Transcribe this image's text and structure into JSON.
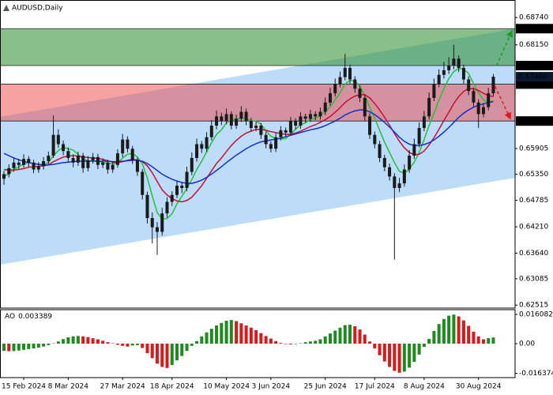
{
  "chart_data": [
    {
      "type": "candlestick",
      "title": "AUDUSD,Daily",
      "xlim": [
        -0.8,
        103.4
      ],
      "ylim": [
        0.6245,
        0.6912
      ],
      "xticks": [
        {
          "value": 4,
          "label": "15 Feb 2024"
        },
        {
          "value": 13,
          "label": "8 Mar 2024"
        },
        {
          "value": 24,
          "label": "27 Mar 2024"
        },
        {
          "value": 34,
          "label": "18 Apr 2024"
        },
        {
          "value": 45,
          "label": "10 May 2024"
        },
        {
          "value": 54,
          "label": "3 Jun 2024"
        },
        {
          "value": 65,
          "label": "25 Jun 2024"
        },
        {
          "value": 75,
          "label": "17 Jul 2024"
        },
        {
          "value": 85,
          "label": "8 Aug 2024"
        },
        {
          "value": 96,
          "label": "30 Aug 2024"
        }
      ],
      "yticks": [
        {
          "value": 0.6874,
          "label": "0.68740"
        },
        {
          "value": 0.6815,
          "label": "0.68150"
        },
        {
          "value": 0.65905,
          "label": "0.65905"
        },
        {
          "value": 0.6535,
          "label": "0.65350"
        },
        {
          "value": 0.64785,
          "label": "0.64785"
        },
        {
          "value": 0.6421,
          "label": "0.64210"
        },
        {
          "value": 0.6364,
          "label": "0.63640"
        },
        {
          "value": 0.63085,
          "label": "0.63085"
        },
        {
          "value": 0.62515,
          "label": "0.62515"
        }
      ],
      "grid": false,
      "levels": [
        {
          "value": 0.685,
          "label": "0.68500"
        },
        {
          "value": 0.677,
          "label": "0.67700"
        },
        {
          "value": 0.673,
          "label": "0.67300"
        },
        {
          "value": 0.665,
          "label": "0.66500"
        }
      ],
      "current_price": {
        "value": 0.6746,
        "label": "0.67460"
      },
      "zones": [
        {
          "range": [
            0.677,
            0.685
          ],
          "color": "rgba(40,140,40,0.55)"
        },
        {
          "range": [
            0.665,
            0.673
          ],
          "color": "rgba(240,70,70,0.5)"
        }
      ],
      "channel": {
        "upper": [
          0.6659,
          0.685
        ],
        "lower": [
          0.6339,
          0.6527
        ],
        "color": "#bcdcfa"
      },
      "candle_color": "#1a1a1a",
      "candles": [
        [
          0.6525,
          0.6542,
          0.6512,
          0.6535
        ],
        [
          0.6535,
          0.6556,
          0.6528,
          0.6548
        ],
        [
          0.6548,
          0.6571,
          0.654,
          0.656
        ],
        [
          0.656,
          0.6568,
          0.6546,
          0.6555
        ],
        [
          0.6555,
          0.6578,
          0.6549,
          0.6568
        ],
        [
          0.6568,
          0.6574,
          0.6551,
          0.656
        ],
        [
          0.656,
          0.6566,
          0.6537,
          0.6545
        ],
        [
          0.6545,
          0.6561,
          0.6538,
          0.6552
        ],
        [
          0.6552,
          0.6572,
          0.6545,
          0.6563
        ],
        [
          0.6563,
          0.6584,
          0.6556,
          0.6575
        ],
        [
          0.6575,
          0.6662,
          0.657,
          0.662
        ],
        [
          0.662,
          0.6632,
          0.6592,
          0.66
        ],
        [
          0.66,
          0.6608,
          0.6576,
          0.6585
        ],
        [
          0.6585,
          0.6593,
          0.6562,
          0.657
        ],
        [
          0.657,
          0.6578,
          0.655,
          0.656
        ],
        [
          0.656,
          0.6584,
          0.6553,
          0.6575
        ],
        [
          0.6575,
          0.6581,
          0.6538,
          0.6548
        ],
        [
          0.6548,
          0.6574,
          0.6541,
          0.6565
        ],
        [
          0.6565,
          0.6581,
          0.6558,
          0.6572
        ],
        [
          0.6572,
          0.6579,
          0.6546,
          0.6555
        ],
        [
          0.6555,
          0.6569,
          0.6548,
          0.656
        ],
        [
          0.656,
          0.6566,
          0.6536,
          0.6545
        ],
        [
          0.6545,
          0.6563,
          0.6538,
          0.6555
        ],
        [
          0.6555,
          0.6589,
          0.6549,
          0.658
        ],
        [
          0.658,
          0.6622,
          0.6572,
          0.661
        ],
        [
          0.661,
          0.6617,
          0.6582,
          0.659
        ],
        [
          0.659,
          0.6596,
          0.6557,
          0.6565
        ],
        [
          0.6565,
          0.6571,
          0.6531,
          0.654
        ],
        [
          0.654,
          0.6546,
          0.648,
          0.649
        ],
        [
          0.649,
          0.6497,
          0.6428,
          0.644
        ],
        [
          0.644,
          0.6452,
          0.6385,
          0.642
        ],
        [
          0.642,
          0.6431,
          0.636,
          0.641
        ],
        [
          0.641,
          0.6462,
          0.6402,
          0.645
        ],
        [
          0.645,
          0.6485,
          0.6441,
          0.6475
        ],
        [
          0.6475,
          0.6498,
          0.6466,
          0.649
        ],
        [
          0.649,
          0.6521,
          0.6483,
          0.651
        ],
        [
          0.651,
          0.6518,
          0.6494,
          0.6505
        ],
        [
          0.6505,
          0.6551,
          0.6498,
          0.654
        ],
        [
          0.654,
          0.6582,
          0.6533,
          0.657
        ],
        [
          0.657,
          0.6612,
          0.6562,
          0.66
        ],
        [
          0.66,
          0.6607,
          0.6581,
          0.659
        ],
        [
          0.659,
          0.6626,
          0.6583,
          0.6615
        ],
        [
          0.6615,
          0.6652,
          0.6608,
          0.664
        ],
        [
          0.664,
          0.6673,
          0.6632,
          0.666
        ],
        [
          0.666,
          0.6668,
          0.6641,
          0.665
        ],
        [
          0.665,
          0.6677,
          0.6643,
          0.6665
        ],
        [
          0.6665,
          0.6671,
          0.6632,
          0.664
        ],
        [
          0.664,
          0.6664,
          0.6633,
          0.6655
        ],
        [
          0.6655,
          0.6682,
          0.6648,
          0.667
        ],
        [
          0.667,
          0.6677,
          0.6641,
          0.665
        ],
        [
          0.665,
          0.6657,
          0.6627,
          0.6635
        ],
        [
          0.6635,
          0.6649,
          0.6628,
          0.664
        ],
        [
          0.664,
          0.6646,
          0.6611,
          0.662
        ],
        [
          0.662,
          0.6627,
          0.6591,
          0.66
        ],
        [
          0.66,
          0.6606,
          0.6582,
          0.659
        ],
        [
          0.659,
          0.6624,
          0.6583,
          0.6615
        ],
        [
          0.6615,
          0.6639,
          0.6608,
          0.663
        ],
        [
          0.663,
          0.6636,
          0.6617,
          0.6625
        ],
        [
          0.6625,
          0.6659,
          0.6618,
          0.665
        ],
        [
          0.665,
          0.6656,
          0.6632,
          0.664
        ],
        [
          0.664,
          0.6669,
          0.6633,
          0.666
        ],
        [
          0.666,
          0.6666,
          0.6647,
          0.6655
        ],
        [
          0.6655,
          0.6674,
          0.6648,
          0.6665
        ],
        [
          0.6665,
          0.6671,
          0.6652,
          0.666
        ],
        [
          0.666,
          0.6679,
          0.6653,
          0.667
        ],
        [
          0.667,
          0.6701,
          0.6663,
          0.669
        ],
        [
          0.669,
          0.6722,
          0.6683,
          0.671
        ],
        [
          0.671,
          0.6742,
          0.6703,
          0.673
        ],
        [
          0.673,
          0.6757,
          0.6723,
          0.6745
        ],
        [
          0.6745,
          0.6795,
          0.6738,
          0.6765
        ],
        [
          0.6765,
          0.6772,
          0.6731,
          0.674
        ],
        [
          0.674,
          0.6747,
          0.6711,
          0.672
        ],
        [
          0.672,
          0.6727,
          0.6691,
          0.67
        ],
        [
          0.67,
          0.6706,
          0.6651,
          0.666
        ],
        [
          0.666,
          0.6667,
          0.6611,
          0.662
        ],
        [
          0.662,
          0.6627,
          0.6591,
          0.66
        ],
        [
          0.66,
          0.6607,
          0.6561,
          0.657
        ],
        [
          0.657,
          0.6577,
          0.6541,
          0.655
        ],
        [
          0.655,
          0.6558,
          0.6521,
          0.653
        ],
        [
          0.653,
          0.6537,
          0.635,
          0.6505
        ],
        [
          0.6505,
          0.6527,
          0.6496,
          0.6515
        ],
        [
          0.6515,
          0.6556,
          0.6508,
          0.6545
        ],
        [
          0.6545,
          0.6587,
          0.6538,
          0.6575
        ],
        [
          0.6575,
          0.6612,
          0.6568,
          0.66
        ],
        [
          0.66,
          0.6647,
          0.6593,
          0.6635
        ],
        [
          0.6635,
          0.6672,
          0.6628,
          0.666
        ],
        [
          0.666,
          0.6712,
          0.6653,
          0.67
        ],
        [
          0.67,
          0.6742,
          0.6693,
          0.673
        ],
        [
          0.673,
          0.6762,
          0.6723,
          0.675
        ],
        [
          0.675,
          0.6778,
          0.6742,
          0.676
        ],
        [
          0.676,
          0.6788,
          0.6752,
          0.677
        ],
        [
          0.677,
          0.6815,
          0.6762,
          0.6785
        ],
        [
          0.6785,
          0.6792,
          0.6756,
          0.6765
        ],
        [
          0.6765,
          0.6772,
          0.6731,
          0.674
        ],
        [
          0.674,
          0.6747,
          0.6706,
          0.6715
        ],
        [
          0.6715,
          0.6722,
          0.6681,
          0.669
        ],
        [
          0.669,
          0.6697,
          0.6635,
          0.6665
        ],
        [
          0.6665,
          0.6689,
          0.6658,
          0.668
        ],
        [
          0.668,
          0.6722,
          0.6673,
          0.671
        ],
        [
          0.671,
          0.6752,
          0.6703,
          0.6746
        ]
      ],
      "series": [
        {
          "color": "#22c03a",
          "values": [
            0.653,
            0.6536,
            0.6545,
            0.6551,
            0.6557,
            0.656,
            0.6558,
            0.6556,
            0.6556,
            0.656,
            0.6575,
            0.6586,
            0.6593,
            0.659,
            0.6587,
            0.6578,
            0.6568,
            0.6564,
            0.6564,
            0.6563,
            0.656,
            0.6559,
            0.6557,
            0.6559,
            0.657,
            0.6578,
            0.658,
            0.6572,
            0.6557,
            0.6527,
            0.6488,
            0.6452,
            0.6438,
            0.6439,
            0.6449,
            0.6471,
            0.6487,
            0.6504,
            0.6523,
            0.6545,
            0.6563,
            0.6583,
            0.6603,
            0.6621,
            0.6631,
            0.6646,
            0.6652,
            0.6654,
            0.6656,
            0.6656,
            0.665,
            0.665,
            0.6643,
            0.6629,
            0.6617,
            0.6612,
            0.6611,
            0.6612,
            0.6622,
            0.6632,
            0.6642,
            0.6646,
            0.6654,
            0.6656,
            0.6662,
            0.667,
            0.6681,
            0.6696,
            0.6711,
            0.673,
            0.6738,
            0.6736,
            0.6726,
            0.6705,
            0.668,
            0.6656,
            0.663,
            0.6604,
            0.6582,
            0.656,
            0.6541,
            0.6537,
            0.6546,
            0.6561,
            0.6582,
            0.661,
            0.664,
            0.6667,
            0.6695,
            0.672,
            0.6742,
            0.6757,
            0.6764,
            0.6762,
            0.6753,
            0.6731,
            0.6711,
            0.6696,
            0.669,
            0.6694
          ]
        },
        {
          "color": "#c8102e",
          "values": [
            0.6545,
            0.6544,
            0.6544,
            0.6545,
            0.6547,
            0.655,
            0.6551,
            0.6552,
            0.6553,
            0.6555,
            0.6562,
            0.6567,
            0.6572,
            0.6574,
            0.6575,
            0.6574,
            0.6572,
            0.6571,
            0.657,
            0.6569,
            0.6567,
            0.6564,
            0.6561,
            0.656,
            0.6562,
            0.6565,
            0.6567,
            0.6566,
            0.6562,
            0.6553,
            0.6538,
            0.6519,
            0.6501,
            0.649,
            0.6482,
            0.6477,
            0.6475,
            0.6478,
            0.6485,
            0.6497,
            0.651,
            0.6526,
            0.6542,
            0.6558,
            0.657,
            0.6584,
            0.6597,
            0.6608,
            0.6617,
            0.6624,
            0.6628,
            0.6632,
            0.6632,
            0.663,
            0.6627,
            0.6625,
            0.6623,
            0.6621,
            0.6622,
            0.6624,
            0.6628,
            0.6633,
            0.6638,
            0.6642,
            0.6647,
            0.6653,
            0.666,
            0.6669,
            0.6679,
            0.669,
            0.6698,
            0.6704,
            0.6707,
            0.6707,
            0.67,
            0.6688,
            0.6674,
            0.6658,
            0.6641,
            0.6623,
            0.6606,
            0.6592,
            0.6582,
            0.6577,
            0.6578,
            0.6585,
            0.6598,
            0.6614,
            0.6632,
            0.6651,
            0.6669,
            0.6688,
            0.6703,
            0.6714,
            0.672,
            0.672,
            0.6716,
            0.671,
            0.6705,
            0.6703
          ]
        },
        {
          "color": "#1530c8",
          "values": [
            0.658,
            0.6575,
            0.657,
            0.6566,
            0.6563,
            0.656,
            0.6558,
            0.6556,
            0.6555,
            0.6555,
            0.6556,
            0.6558,
            0.656,
            0.6561,
            0.6562,
            0.6563,
            0.6563,
            0.6563,
            0.6563,
            0.6563,
            0.6563,
            0.6563,
            0.6562,
            0.6562,
            0.6563,
            0.6564,
            0.6565,
            0.6565,
            0.6563,
            0.6558,
            0.6551,
            0.6543,
            0.6535,
            0.6529,
            0.6524,
            0.652,
            0.6517,
            0.6515,
            0.6515,
            0.6518,
            0.6522,
            0.6528,
            0.6535,
            0.6543,
            0.6551,
            0.656,
            0.6568,
            0.6576,
            0.6583,
            0.659,
            0.6596,
            0.6601,
            0.6605,
            0.6607,
            0.6609,
            0.6611,
            0.6613,
            0.6616,
            0.6619,
            0.6622,
            0.6625,
            0.6628,
            0.6631,
            0.6633,
            0.6636,
            0.664,
            0.6645,
            0.665,
            0.6656,
            0.6663,
            0.6668,
            0.6672,
            0.6674,
            0.6674,
            0.667,
            0.6664,
            0.6656,
            0.6647,
            0.6637,
            0.6626,
            0.6615,
            0.6606,
            0.66,
            0.6597,
            0.6597,
            0.6599,
            0.6603,
            0.6609,
            0.6617,
            0.6626,
            0.6636,
            0.6647,
            0.6658,
            0.6667,
            0.6674,
            0.668,
            0.6684,
            0.6687,
            0.669,
            0.6692
          ]
        }
      ]
    },
    {
      "type": "bar",
      "title": "AO",
      "ylim": [
        -0.0187,
        0.0187
      ],
      "yticks": [
        0.016082,
        {
          "value": 0,
          "label": "0.00"
        },
        -0.016374
      ],
      "up_color": "#1f8a1f",
      "down_color": "#d81a1a",
      "values": [
        -0.004,
        -0.0042,
        -0.0041,
        -0.0038,
        -0.0034,
        -0.003,
        -0.0026,
        -0.0022,
        -0.0016,
        -0.0008,
        0.0002,
        0.0012,
        0.0025,
        0.0035,
        0.004,
        0.0042,
        0.004,
        0.0036,
        0.003,
        0.0024,
        0.0016,
        0.0008,
        0.0002,
        -0.0006,
        -0.0012,
        -0.0016,
        -0.001,
        -0.0008,
        -0.0024,
        -0.0052,
        -0.008,
        -0.011,
        -0.0128,
        -0.0134,
        -0.0118,
        -0.0092,
        -0.0068,
        -0.004,
        -0.0012,
        0.0014,
        0.004,
        0.0062,
        0.0082,
        0.01,
        0.0114,
        0.0126,
        0.013,
        0.0124,
        0.0112,
        0.01,
        0.0088,
        0.0074,
        0.0058,
        0.0042,
        0.0028,
        0.0014,
        0.0004,
        -0.0002,
        -0.0004,
        -0.0002,
        0.0002,
        0.0008,
        0.0012,
        0.0016,
        0.0024,
        0.004,
        0.0056,
        0.0072,
        0.0088,
        0.0102,
        0.0104,
        0.0096,
        0.0078,
        0.005,
        0.0012,
        -0.0026,
        -0.0064,
        -0.0098,
        -0.0128,
        -0.015,
        -0.016,
        -0.0154,
        -0.0132,
        -0.01,
        -0.006,
        -0.0018,
        0.0026,
        0.007,
        0.0108,
        0.0136,
        0.0154,
        0.016,
        0.015,
        0.0128,
        0.0098,
        0.0066,
        0.004,
        0.0024,
        0.003,
        0.003389
      ]
    }
  ]
}
